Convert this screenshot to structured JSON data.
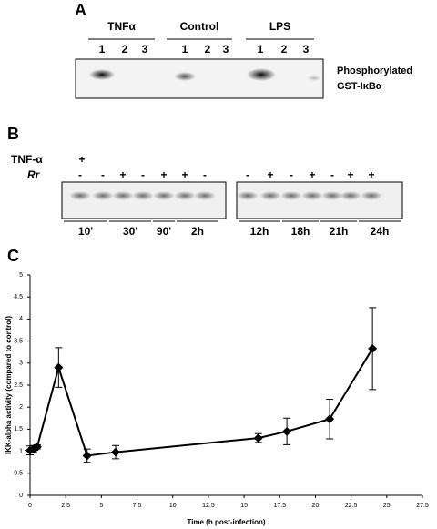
{
  "panel_a": {
    "label": "A",
    "groups": [
      {
        "name": "TNFα",
        "lanes": [
          "1",
          "2",
          "3"
        ]
      },
      {
        "name": "Control",
        "lanes": [
          "1",
          "2",
          "3"
        ]
      },
      {
        "name": "LPS",
        "lanes": [
          "1",
          "2",
          "3"
        ]
      }
    ],
    "blot_label": [
      "Phosphorylated",
      "GST-IκBα"
    ]
  },
  "panel_b": {
    "label": "B",
    "tnf_row": {
      "label": "TNF-α",
      "signs": [
        "+"
      ]
    },
    "rr_row": {
      "label": "Rr",
      "signs": [
        "-",
        "-",
        "+",
        "-",
        "+",
        "+",
        "-",
        "-",
        "+",
        "-",
        "+",
        "-",
        "+",
        "+"
      ]
    },
    "times": [
      "10'",
      "30'",
      "90'",
      "2h",
      "12h",
      "18h",
      "21h",
      "24h"
    ]
  },
  "chart_data": {
    "type": "line",
    "label": "C",
    "x_label": "Time (h post-infection)",
    "y_label": "IKK-alpha activity (compared to control)",
    "x": [
      0,
      0.25,
      0.5,
      2,
      4,
      6,
      16,
      18,
      21,
      24
    ],
    "values": [
      1.02,
      1.05,
      1.1,
      2.9,
      0.9,
      0.98,
      1.3,
      1.45,
      1.73,
      3.33
    ],
    "errors": [
      0.1,
      0.08,
      0.05,
      0.45,
      0.15,
      0.15,
      0.1,
      0.3,
      0.45,
      0.93
    ],
    "color": "#000000",
    "xlim": [
      0,
      27.5
    ],
    "xticks": [
      0,
      2.5,
      5,
      7.5,
      10,
      12.5,
      15,
      17.5,
      20,
      22.5,
      25,
      27.5
    ],
    "ylim": [
      0,
      5
    ],
    "yticks": [
      0,
      0.5,
      1,
      1.5,
      2,
      2.5,
      3,
      3.5,
      4,
      4.5,
      5
    ]
  }
}
